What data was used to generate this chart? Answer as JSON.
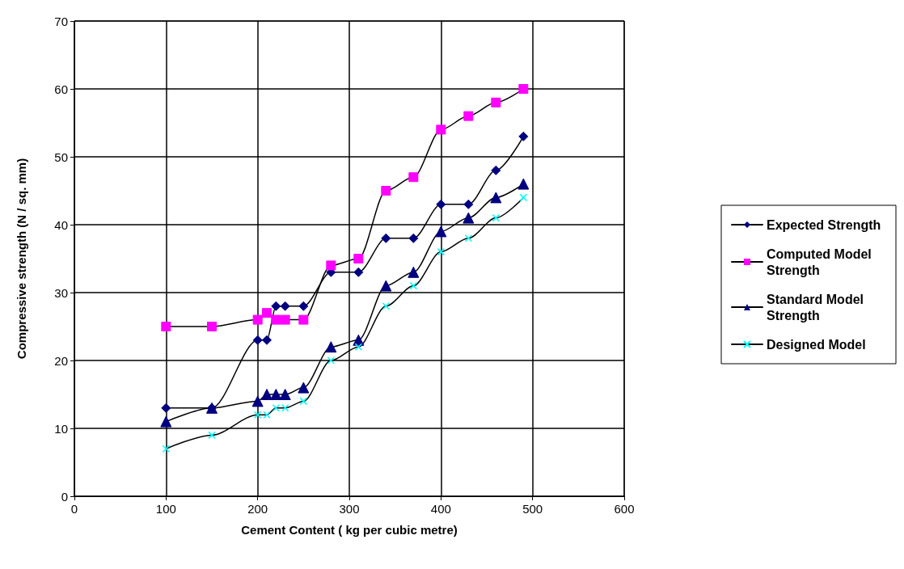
{
  "chart_data": {
    "type": "line",
    "xlabel": "Cement Content ( kg per cubic metre)",
    "ylabel": "Compressive strength (N / sq. mm)",
    "x": [
      100,
      150,
      200,
      210,
      220,
      230,
      250,
      280,
      310,
      340,
      370,
      400,
      430,
      460,
      490
    ],
    "series": [
      {
        "name": "Expected Strength",
        "color": "#000080",
        "marker": "diamond",
        "values": [
          13,
          13,
          23,
          23,
          28,
          28,
          28,
          33,
          33,
          38,
          38,
          43,
          43,
          48,
          53
        ]
      },
      {
        "name": "Computed Model Strength",
        "color": "#ff00ff",
        "marker": "square",
        "values": [
          25,
          25,
          26,
          27,
          26,
          26,
          26,
          34,
          35,
          45,
          47,
          54,
          56,
          58,
          60
        ]
      },
      {
        "name": "Standard Model Strength",
        "color": "#000080",
        "marker": "triangle",
        "values": [
          11,
          13,
          14,
          15,
          15,
          15,
          16,
          22,
          23,
          31,
          33,
          39,
          41,
          44,
          46
        ]
      },
      {
        "name": "Designed Model",
        "color": "#00ffff",
        "marker": "cross",
        "values": [
          7,
          9,
          12,
          12,
          13,
          13,
          14,
          20,
          22,
          28,
          31,
          36,
          38,
          41,
          44
        ]
      }
    ],
    "xlim": [
      0,
      600
    ],
    "xticks": [
      0,
      100,
      200,
      300,
      400,
      500,
      600
    ],
    "ylim": [
      0,
      70
    ],
    "yticks": [
      0,
      10,
      20,
      30,
      40,
      50,
      60,
      70
    ],
    "grid": true,
    "legend": "right"
  }
}
